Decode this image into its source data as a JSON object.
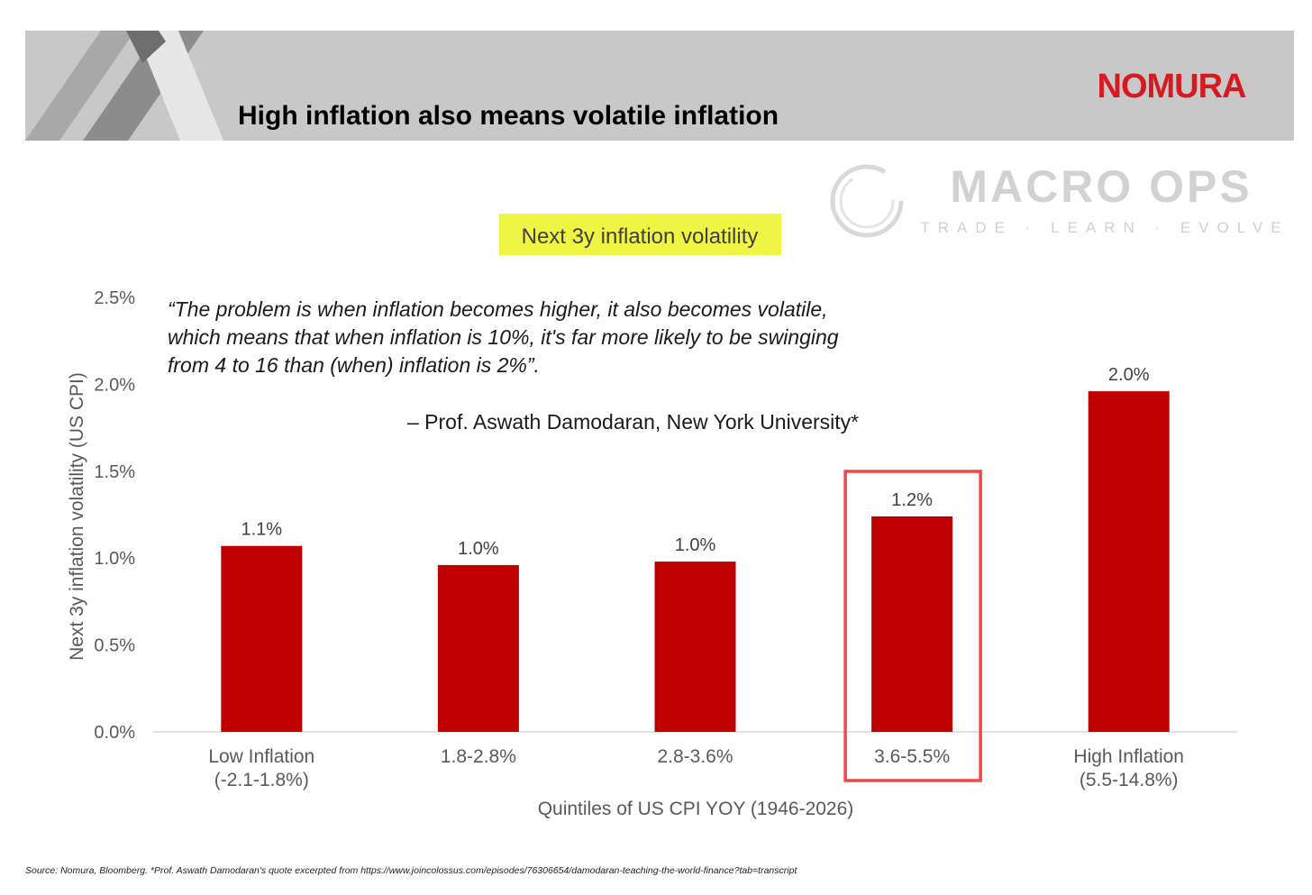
{
  "header": {
    "title": "High inflation also means volatile inflation",
    "logo_text": "NOMURA"
  },
  "watermark": {
    "name": "MACRO OPS",
    "tagline": "TRADE · LEARN · EVOLVE"
  },
  "quote": {
    "lines": [
      "“The problem is when inflation becomes higher, it also becomes volatile,",
      "which means that when inflation is 10%, it's far more likely to be swinging",
      "from 4 to 16 than (when) inflation is 2%”."
    ],
    "attribution": "– Prof. Aswath Damodaran, New York University*"
  },
  "chart_data": {
    "type": "bar",
    "title": "Next 3y inflation volatility",
    "xlabel": "Quintiles of US CPI YOY (1946-2026)",
    "ylabel": "Next 3y inflation volatility (US CPI)",
    "ylim": [
      0,
      2.5
    ],
    "yticks": [
      "0.0%",
      "0.5%",
      "1.0%",
      "1.5%",
      "2.0%",
      "2.5%"
    ],
    "yticks_values": [
      0,
      0.5,
      1.0,
      1.5,
      2.0,
      2.5
    ],
    "categories": [
      [
        "Low Inflation",
        "(-2.1-1.8%)"
      ],
      [
        "1.8-2.8%"
      ],
      [
        "2.8-3.6%"
      ],
      [
        "3.6-5.5%"
      ],
      [
        "High Inflation",
        "(5.5-14.8%)"
      ]
    ],
    "values": [
      1.07,
      0.96,
      0.98,
      1.24,
      1.96
    ],
    "data_labels": [
      "1.1%",
      "1.0%",
      "1.0%",
      "1.2%",
      "2.0%"
    ],
    "highlighted_index": 3,
    "grid": false,
    "bar_color": "#c00000",
    "highlight_color": "#f04848",
    "title_highlight_color": "#eef542"
  },
  "footer": {
    "source": "Source: Nomura, Bloomberg. *Prof. Aswath Damodaran's quote excerpted from https://www.joincolossus.com/episodes/76306654/damodaran-teaching-the-world-finance?tab=transcript"
  },
  "colors": {
    "header_band": "#c8c8c8",
    "nomura_red": "#d71920",
    "axis_text": "#595959",
    "watermark": "#d4d4d4"
  }
}
